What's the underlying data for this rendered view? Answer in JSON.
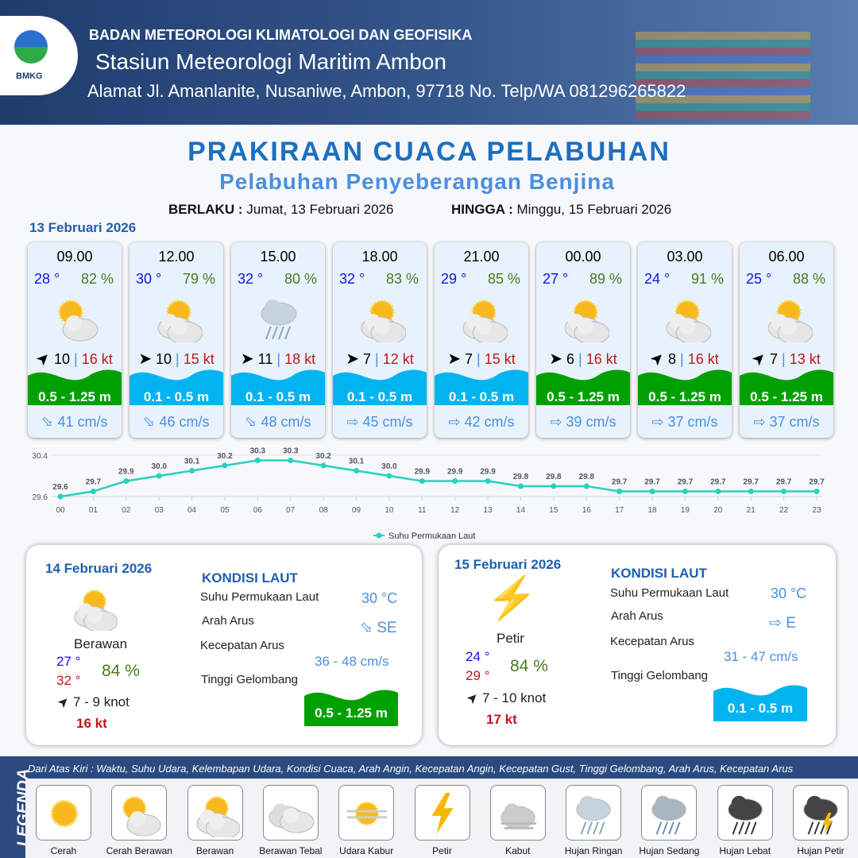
{
  "header": {
    "org": "BADAN METEOROLOGI KLIMATOLOGI DAN GEOFISIKA",
    "station": "Stasiun Meteorologi Maritim Ambon",
    "address": "Alamat Jl. Amanlanite, Nusaniwe, Ambon, 97718   No. Telp/WA  081296265822",
    "logo_text": "BMKG"
  },
  "title": "PRAKIRAAN CUACA PELABUHAN",
  "subtitle": "Pelabuhan Penyeberangan Benjina",
  "validity": {
    "from_label": "BERLAKU :",
    "from": "Jumat, 13 Februari 2026",
    "to_label": "HINGGA :",
    "to": "Minggu, 15 Februari 2026"
  },
  "day1": {
    "date": "13 Februari 2026",
    "cards": [
      {
        "time": "09.00",
        "temp": "28 °",
        "hum": "82 %",
        "icon": "cerah-berawan",
        "wind_arrow": "NE",
        "wind": "10",
        "gust": "16 kt",
        "wave": "0.5 - 1.25 m",
        "wave_color": "#00a000",
        "cur_arrow": "SE",
        "current": "41 cm/s"
      },
      {
        "time": "12.00",
        "temp": "30 °",
        "hum": "79 %",
        "icon": "berawan",
        "wind_arrow": "E",
        "wind": "10",
        "gust": "15 kt",
        "wave": "0.1 - 0.5 m",
        "wave_color": "#00b4f0",
        "cur_arrow": "SE",
        "current": "46 cm/s"
      },
      {
        "time": "15.00",
        "temp": "32 °",
        "hum": "80 %",
        "icon": "hujan-ringan",
        "wind_arrow": "E",
        "wind": "11",
        "gust": "18 kt",
        "wave": "0.1 - 0.5 m",
        "wave_color": "#00b4f0",
        "cur_arrow": "SE",
        "current": "48 cm/s"
      },
      {
        "time": "18.00",
        "temp": "32 °",
        "hum": "83 %",
        "icon": "berawan",
        "wind_arrow": "E",
        "wind": "7",
        "gust": "12 kt",
        "wave": "0.1 - 0.5 m",
        "wave_color": "#00b4f0",
        "cur_arrow": "E",
        "current": "45 cm/s"
      },
      {
        "time": "21.00",
        "temp": "29 °",
        "hum": "85 %",
        "icon": "berawan",
        "wind_arrow": "E",
        "wind": "7",
        "gust": "15 kt",
        "wave": "0.1 - 0.5 m",
        "wave_color": "#00b4f0",
        "cur_arrow": "E",
        "current": "42 cm/s"
      },
      {
        "time": "00.00",
        "temp": "27 °",
        "hum": "89 %",
        "icon": "berawan",
        "wind_arrow": "E",
        "wind": "6",
        "gust": "16 kt",
        "wave": "0.5 - 1.25 m",
        "wave_color": "#00a000",
        "cur_arrow": "E",
        "current": "39 cm/s"
      },
      {
        "time": "03.00",
        "temp": "24 °",
        "hum": "91 %",
        "icon": "berawan",
        "wind_arrow": "NE",
        "wind": "8",
        "gust": "16 kt",
        "wave": "0.5 - 1.25 m",
        "wave_color": "#00a000",
        "cur_arrow": "E",
        "current": "37 cm/s"
      },
      {
        "time": "06.00",
        "temp": "25 °",
        "hum": "88 %",
        "icon": "berawan",
        "wind_arrow": "NE",
        "wind": "7",
        "gust": "13 kt",
        "wave": "0.5 - 1.25 m",
        "wave_color": "#00a000",
        "cur_arrow": "E",
        "current": "37 cm/s"
      }
    ]
  },
  "chart_data": {
    "type": "line",
    "x": [
      "00",
      "01",
      "02",
      "03",
      "04",
      "05",
      "06",
      "07",
      "08",
      "09",
      "10",
      "11",
      "12",
      "13",
      "14",
      "15",
      "16",
      "17",
      "18",
      "19",
      "20",
      "21",
      "22",
      "23"
    ],
    "series": [
      {
        "name": "Suhu Permukaan Laut",
        "values": [
          29.6,
          29.7,
          29.9,
          30.0,
          30.1,
          30.2,
          30.3,
          30.3,
          30.2,
          30.1,
          30.0,
          29.9,
          29.9,
          29.9,
          29.8,
          29.8,
          29.8,
          29.7,
          29.7,
          29.7,
          29.7,
          29.7,
          29.7,
          29.7
        ],
        "color": "#2ad0c0"
      }
    ],
    "yticks": [
      "30.4",
      "29.6"
    ],
    "ylim": [
      29.6,
      30.4
    ],
    "legend": "bottom"
  },
  "day2": {
    "date": "14 Februari 2026",
    "icon": "berawan",
    "cond": "Berawan",
    "tmin": "27 °",
    "tmax": "32 °",
    "hum": "84 %",
    "wind": "7  - 9 knot",
    "gust": "16 kt",
    "kondisi": "KONDISI LAUT",
    "sst_label": "Suhu Permukaan Laut",
    "sst": "30 °C",
    "dir_label": "Arah Arus",
    "dir": "SE",
    "spd_label": "Kecepatan Arus",
    "spd": "36 - 48 cm/s",
    "wave_label": "Tinggi Gelombang",
    "wave": "0.5 - 1.25 m",
    "wave_color": "#00a000"
  },
  "day3": {
    "date": "15 Februari 2026",
    "icon": "petir",
    "cond": "Petir",
    "tmin": "24 °",
    "tmax": "29 °",
    "hum": "84 %",
    "wind": "7  - 10 knot",
    "gust": "17 kt",
    "kondisi": "KONDISI LAUT",
    "sst_label": "Suhu Permukaan Laut",
    "sst": "30 °C",
    "dir_label": "Arah Arus",
    "dir": "E",
    "spd_label": "Kecepatan Arus",
    "spd": "31 - 47 cm/s",
    "wave_label": "Tinggi Gelombang",
    "wave": "0.1 - 0.5 m",
    "wave_color": "#00b4f0"
  },
  "legend": {
    "title": "LEGENDA",
    "desc": "Dari Atas Kiri : Waktu, Suhu Udara, Kelembapan Udara, Kondisi Cuaca, Arah Angin, Kecepatan Angin, Kecepatan Gust, Tinggi Gelombang, Arah Arus, Kecepatan Arus",
    "items": [
      {
        "label": "Cerah",
        "icon": "cerah"
      },
      {
        "label": "Cerah Berawan",
        "icon": "cerah-berawan"
      },
      {
        "label": "Berawan",
        "icon": "berawan"
      },
      {
        "label": "Berawan Tebal",
        "icon": "berawan-tebal"
      },
      {
        "label": "Udara Kabur",
        "icon": "udara-kabur"
      },
      {
        "label": "Petir",
        "icon": "petir"
      },
      {
        "label": "Kabut",
        "icon": "kabut"
      },
      {
        "label": "Hujan Ringan",
        "icon": "hujan-ringan"
      },
      {
        "label": "Hujan Sedang",
        "icon": "hujan-sedang"
      },
      {
        "label": "Hujan Lebat",
        "icon": "hujan-lebat"
      },
      {
        "label": "Hujan Petir",
        "icon": "hujan-petir"
      }
    ]
  }
}
